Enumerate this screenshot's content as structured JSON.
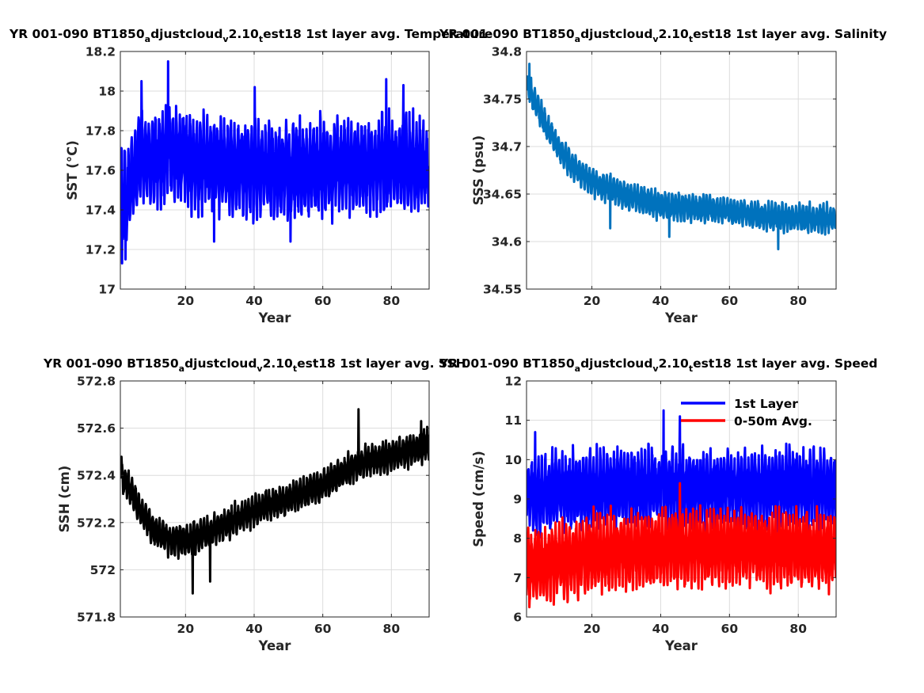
{
  "chart_data": [
    {
      "type": "line",
      "title_parts": [
        "YR 001-090 BT1850",
        "a",
        "djustcloud",
        "v",
        "2.10",
        "t",
        "est18 1st layer avg. Temperature"
      ],
      "xlabel": "Year",
      "ylabel": "SST (°C)",
      "xlim": [
        1,
        91
      ],
      "ylim": [
        17,
        18.2
      ],
      "xticks": [
        20,
        40,
        60,
        80
      ],
      "yticks": [
        "17",
        "17.2",
        "17.4",
        "17.6",
        "17.8",
        "18",
        "18.2"
      ],
      "grid": true,
      "series": [
        {
          "color": "#0000ff",
          "sampling": "monthly",
          "trend": [
            [
              1,
              17.5
            ],
            [
              3,
              17.45
            ],
            [
              6,
              17.65
            ],
            [
              15,
              17.68
            ],
            [
              30,
              17.62
            ],
            [
              50,
              17.6
            ],
            [
              70,
              17.63
            ],
            [
              91,
              17.62
            ]
          ],
          "amplitude": 0.2,
          "extremes": [
            [
              1.5,
              17.13
            ],
            [
              2.5,
              17.15
            ],
            [
              14.9,
              18.15
            ],
            [
              7.2,
              18.05
            ],
            [
              28.3,
              17.24
            ],
            [
              50.6,
              17.24
            ],
            [
              78.5,
              18.06
            ],
            [
              40.2,
              18.02
            ],
            [
              83.5,
              18.03
            ]
          ]
        }
      ]
    },
    {
      "type": "line",
      "title_parts": [
        "YR 001-090 BT1850",
        "a",
        "djustcloud",
        "v",
        "2.10",
        "t",
        "est18 1st layer avg. Salinity"
      ],
      "xlabel": "Year",
      "ylabel": "SSS (psu)",
      "xlim": [
        1,
        91
      ],
      "ylim": [
        34.55,
        34.8
      ],
      "xticks": [
        20,
        40,
        60,
        80
      ],
      "yticks": [
        "34.55",
        "34.6",
        "34.65",
        "34.7",
        "34.75",
        "34.8"
      ],
      "grid": true,
      "series": [
        {
          "color": "#0072bd",
          "sampling": "monthly",
          "trend": [
            [
              1,
              34.765
            ],
            [
              5,
              34.735
            ],
            [
              10,
              34.7
            ],
            [
              15,
              34.677
            ],
            [
              20,
              34.663
            ],
            [
              30,
              34.648
            ],
            [
              40,
              34.638
            ],
            [
              50,
              34.635
            ],
            [
              60,
              34.632
            ],
            [
              70,
              34.627
            ],
            [
              80,
              34.625
            ],
            [
              91,
              34.624
            ]
          ],
          "amplitude": 0.012,
          "extremes": [
            [
              1.8,
              34.787
            ],
            [
              74.2,
              34.592
            ],
            [
              42.5,
              34.605
            ],
            [
              25.3,
              34.614
            ]
          ]
        }
      ]
    },
    {
      "type": "line",
      "title_parts": [
        "YR 001-090 BT1850",
        "a",
        "djustcloud",
        "v",
        "2.10",
        "t",
        "est18 1st layer avg. SSH"
      ],
      "xlabel": "Year",
      "ylabel": "SSH (cm)",
      "xlim": [
        1,
        91
      ],
      "ylim": [
        571.8,
        572.8
      ],
      "xticks": [
        20,
        40,
        60,
        80
      ],
      "yticks": [
        "571.8",
        "572",
        "572.2",
        "572.4",
        "572.6",
        "572.8"
      ],
      "grid": true,
      "series": [
        {
          "color": "#000000",
          "sampling": "monthly",
          "trend": [
            [
              1,
              572.42
            ],
            [
              5,
              572.3
            ],
            [
              10,
              572.18
            ],
            [
              15,
              572.13
            ],
            [
              22,
              572.13
            ],
            [
              30,
              572.18
            ],
            [
              40,
              572.25
            ],
            [
              50,
              572.3
            ],
            [
              60,
              572.36
            ],
            [
              65,
              572.4
            ],
            [
              70,
              572.45
            ],
            [
              80,
              572.48
            ],
            [
              91,
              572.53
            ]
          ],
          "amplitude": 0.055,
          "extremes": [
            [
              1.2,
              572.47
            ],
            [
              22.1,
              571.9
            ],
            [
              70.4,
              572.68
            ],
            [
              88.7,
              572.63
            ],
            [
              27.2,
              571.95
            ]
          ]
        }
      ]
    },
    {
      "type": "line",
      "title_parts": [
        "YR 001-090 BT1850",
        "a",
        "djustcloud",
        "v",
        "2.10",
        "t",
        "est18 1st layer avg. Speed"
      ],
      "xlabel": "Year",
      "ylabel": "Speed (cm/s)",
      "xlim": [
        1,
        91
      ],
      "ylim": [
        6,
        12
      ],
      "xticks": [
        20,
        40,
        60,
        80
      ],
      "yticks": [
        "6",
        "7",
        "8",
        "9",
        "10",
        "11",
        "12"
      ],
      "grid": true,
      "legend_position": "top-right",
      "series": [
        {
          "name": "1st Layer",
          "color": "#0000ff",
          "sampling": "monthly",
          "trend": [
            [
              1,
              9.1
            ],
            [
              20,
              9.25
            ],
            [
              40,
              9.3
            ],
            [
              60,
              9.3
            ],
            [
              91,
              9.25
            ]
          ],
          "amplitude": 0.8,
          "extremes": [
            [
              40.8,
              11.25
            ],
            [
              45.6,
              11.1
            ],
            [
              3.5,
              10.7
            ]
          ]
        },
        {
          "name": "0-50m Avg.",
          "color": "#ff0000",
          "sampling": "monthly",
          "trend": [
            [
              1,
              7.3
            ],
            [
              20,
              7.6
            ],
            [
              40,
              7.75
            ],
            [
              60,
              7.75
            ],
            [
              91,
              7.7
            ]
          ],
          "amplitude": 0.8,
          "extremes": [
            [
              1.8,
              6.25
            ],
            [
              45.6,
              9.4
            ]
          ]
        }
      ]
    }
  ]
}
